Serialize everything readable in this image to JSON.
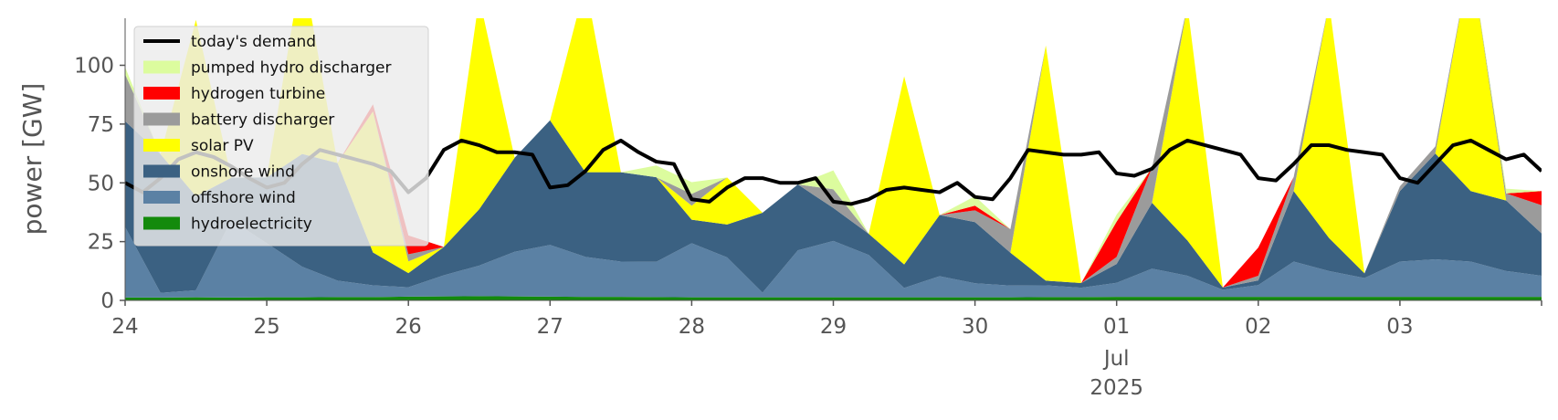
{
  "chart_data": {
    "type": "area",
    "title": "",
    "ylabel": "power [GW]",
    "xlabel": "",
    "ylim": [
      0,
      120
    ],
    "xlim": [
      0,
      240
    ],
    "y_ticks": [
      0,
      25,
      50,
      75,
      100
    ],
    "x_ticks": [
      {
        "x": 0,
        "label": "24"
      },
      {
        "x": 24,
        "label": "25"
      },
      {
        "x": 48,
        "label": "26"
      },
      {
        "x": 72,
        "label": "27"
      },
      {
        "x": 96,
        "label": "28"
      },
      {
        "x": 120,
        "label": "29"
      },
      {
        "x": 144,
        "label": "30"
      },
      {
        "x": 168,
        "label": "01",
        "sub": [
          "Jul",
          "2025"
        ]
      },
      {
        "x": 192,
        "label": "02"
      },
      {
        "x": 216,
        "label": "03"
      }
    ],
    "grid": false,
    "legend_position": "top-left",
    "x": [
      0,
      6,
      12,
      18,
      24,
      30,
      36,
      42,
      48,
      54,
      60,
      66,
      72,
      78,
      84,
      90,
      96,
      102,
      108,
      114,
      120,
      126,
      132,
      138,
      144,
      150,
      156,
      162,
      168,
      174,
      180,
      186,
      192,
      198,
      204,
      210,
      216,
      222,
      228,
      234,
      240
    ],
    "stack_series": [
      {
        "name": "hydroelectricity",
        "color": "#138a0c",
        "values": [
          1.2,
          1.2,
          1.3,
          1.2,
          1.3,
          1.3,
          1.4,
          1.4,
          1.6,
          1.7,
          1.8,
          1.7,
          1.6,
          1.5,
          1.5,
          1.4,
          1.3,
          1.3,
          1.3,
          1.3,
          1.3,
          1.3,
          1.3,
          1.3,
          1.3,
          1.3,
          1.4,
          1.4,
          1.5,
          1.5,
          1.5,
          1.5,
          1.5,
          1.5,
          1.5,
          1.5,
          1.5,
          1.5,
          1.5,
          1.5,
          1.5
        ]
      },
      {
        "name": "offshore wind",
        "color": "#5b81a4",
        "values": [
          30,
          2,
          3,
          33,
          23,
          13,
          7,
          5,
          4,
          9,
          13,
          19,
          22,
          17,
          15,
          15,
          23,
          17,
          2,
          20,
          24,
          18,
          4,
          9,
          6,
          5,
          5,
          4,
          6,
          12,
          9,
          3,
          5,
          15,
          11,
          8,
          15,
          16,
          15,
          11,
          9
        ]
      },
      {
        "name": "onshore wind",
        "color": "#3b6182",
        "values": [
          45,
          59,
          40,
          18,
          28,
          48,
          50,
          14,
          6,
          12,
          24,
          40,
          53,
          36,
          38,
          36,
          10,
          14,
          34,
          28,
          14,
          9,
          10,
          26,
          26,
          14,
          2,
          2,
          8,
          28,
          15,
          1,
          2,
          30,
          14,
          2,
          30,
          45,
          30,
          30,
          18
        ]
      },
      {
        "name": "solar PV",
        "color": "#ffff00",
        "values": [
          0,
          0,
          75,
          0,
          0,
          80,
          0,
          60,
          5,
          0,
          90,
          0,
          0,
          80,
          0,
          0,
          6,
          20,
          0,
          0,
          0,
          0,
          80,
          0,
          0,
          0,
          100,
          0,
          0,
          0,
          100,
          0,
          0,
          0,
          100,
          0,
          0,
          0,
          100,
          0,
          0
        ]
      },
      {
        "name": "battery discharger",
        "color": "#9b9b9b",
        "values": [
          20,
          0,
          0,
          0,
          0,
          0,
          0,
          0,
          3,
          0,
          0,
          0,
          0,
          0,
          0,
          0,
          5,
          0,
          0,
          0,
          8,
          0,
          0,
          0,
          5,
          10,
          0,
          0,
          3,
          15,
          0,
          0,
          2,
          6,
          0,
          0,
          2,
          3,
          0,
          3,
          12
        ]
      },
      {
        "name": "hydrogen turbine",
        "color": "#ff0000",
        "values": [
          0,
          0,
          0,
          0,
          0,
          0,
          0,
          3,
          8,
          0,
          0,
          0,
          0,
          0,
          0,
          0,
          0,
          0,
          0,
          0,
          0,
          0,
          0,
          0,
          2,
          0,
          0,
          0,
          15,
          0,
          0,
          0,
          12,
          0,
          0,
          0,
          0,
          0,
          0,
          0,
          6
        ]
      },
      {
        "name": "pumped hydro discharger",
        "color": "#dcfc9e",
        "values": [
          3,
          0,
          0,
          0,
          0,
          0,
          0,
          0,
          0,
          0,
          0,
          0,
          0,
          0,
          0,
          5,
          5,
          0,
          0,
          0,
          8,
          0,
          0,
          0,
          4,
          0,
          0,
          0,
          3,
          0,
          0,
          0,
          0,
          0,
          0,
          0,
          0,
          0,
          0,
          2,
          0
        ]
      }
    ],
    "demand": {
      "name": "today's demand",
      "color": "#000000",
      "x": [
        0,
        3,
        6,
        9,
        12,
        15,
        18,
        21,
        24,
        27,
        30,
        33,
        36,
        39,
        42,
        45,
        48,
        51,
        54,
        57,
        60,
        63,
        66,
        69,
        72,
        75,
        78,
        81,
        84,
        87,
        90,
        93,
        96,
        99,
        102,
        105,
        108,
        111,
        114,
        117,
        120,
        123,
        126,
        129,
        132,
        135,
        138,
        141,
        144,
        147,
        150,
        153,
        156,
        159,
        162,
        165,
        168,
        171,
        174,
        177,
        180,
        183,
        186,
        189,
        192,
        195,
        198,
        201,
        204,
        207,
        210,
        213,
        216,
        219,
        222,
        225,
        228,
        231,
        234,
        237,
        240
      ],
      "values": [
        50,
        46,
        52,
        60,
        63,
        61,
        57,
        52,
        48,
        50,
        58,
        64,
        62,
        60,
        58,
        55,
        46,
        52,
        64,
        68,
        66,
        63,
        63,
        62,
        48,
        49,
        55,
        64,
        68,
        63,
        59,
        58,
        43,
        42,
        48,
        52,
        52,
        50,
        50,
        52,
        42,
        41,
        43,
        47,
        48,
        47,
        46,
        50,
        44,
        43,
        52,
        64,
        63,
        62,
        62,
        63,
        54,
        53,
        56,
        64,
        68,
        66,
        64,
        62,
        52,
        51,
        58,
        66,
        66,
        64,
        63,
        62,
        52,
        50,
        58,
        66,
        68,
        64,
        60,
        62,
        55
      ]
    }
  }
}
